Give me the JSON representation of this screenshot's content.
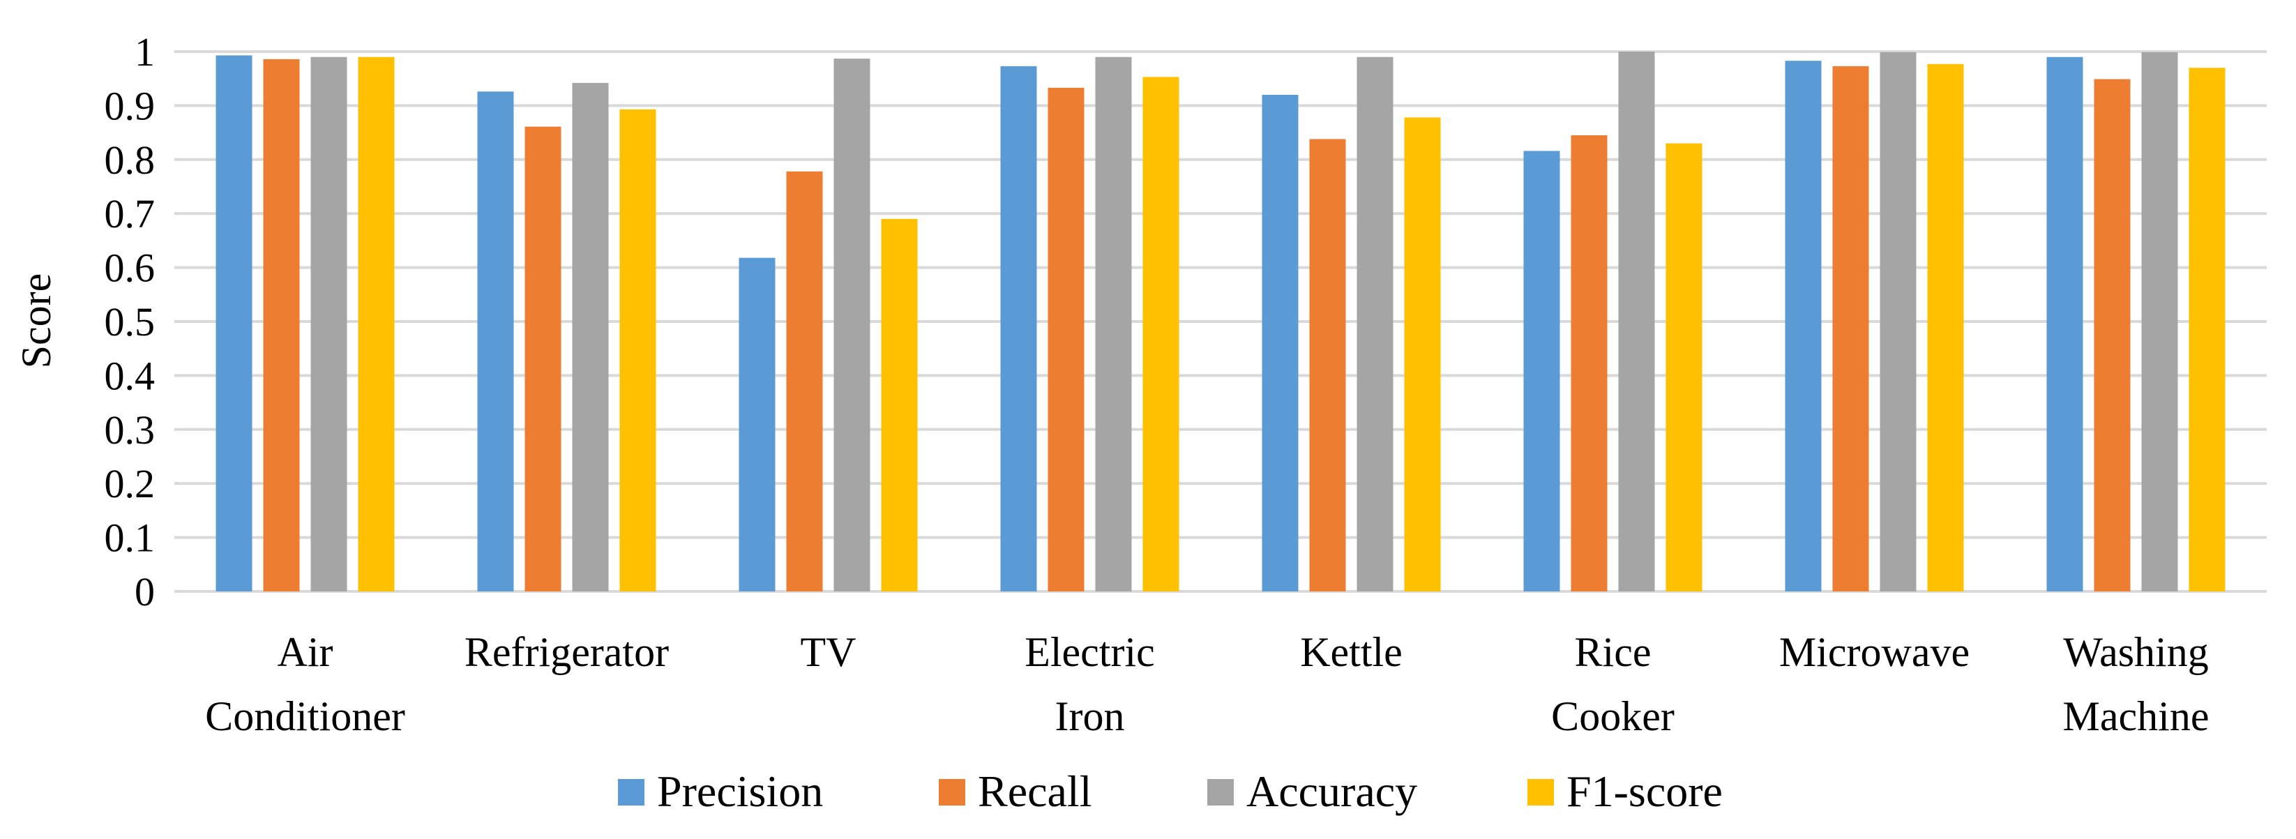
{
  "chart_data": {
    "type": "bar",
    "title": "",
    "xlabel": "",
    "ylabel": "Score",
    "ylim": [
      0,
      1
    ],
    "yticks": [
      "0",
      "0.1",
      "0.2",
      "0.3",
      "0.4",
      "0.5",
      "0.6",
      "0.7",
      "0.8",
      "0.9",
      "1"
    ],
    "grid": true,
    "legend_position": "bottom",
    "categories": [
      [
        "Air",
        "Conditioner"
      ],
      [
        "Refrigerator"
      ],
      [
        "TV"
      ],
      [
        "Electric",
        "Iron"
      ],
      [
        "Kettle"
      ],
      [
        "Rice",
        "Cooker"
      ],
      [
        "Microwave"
      ],
      [
        "Washing",
        "Machine"
      ]
    ],
    "series": [
      {
        "name": "Precision",
        "color": "#5b9bd5",
        "values": [
          0.993,
          0.926,
          0.618,
          0.973,
          0.92,
          0.816,
          0.983,
          0.99
        ]
      },
      {
        "name": "Recall",
        "color": "#ed7d31",
        "values": [
          0.986,
          0.861,
          0.778,
          0.933,
          0.838,
          0.845,
          0.973,
          0.949
        ]
      },
      {
        "name": "Accuracy",
        "color": "#a5a5a5",
        "values": [
          0.99,
          0.942,
          0.987,
          0.99,
          0.99,
          1.0,
          0.999,
          0.999
        ]
      },
      {
        "name": "F1-score",
        "color": "#ffc000",
        "values": [
          0.99,
          0.893,
          0.69,
          0.953,
          0.878,
          0.83,
          0.977,
          0.97
        ]
      }
    ]
  }
}
